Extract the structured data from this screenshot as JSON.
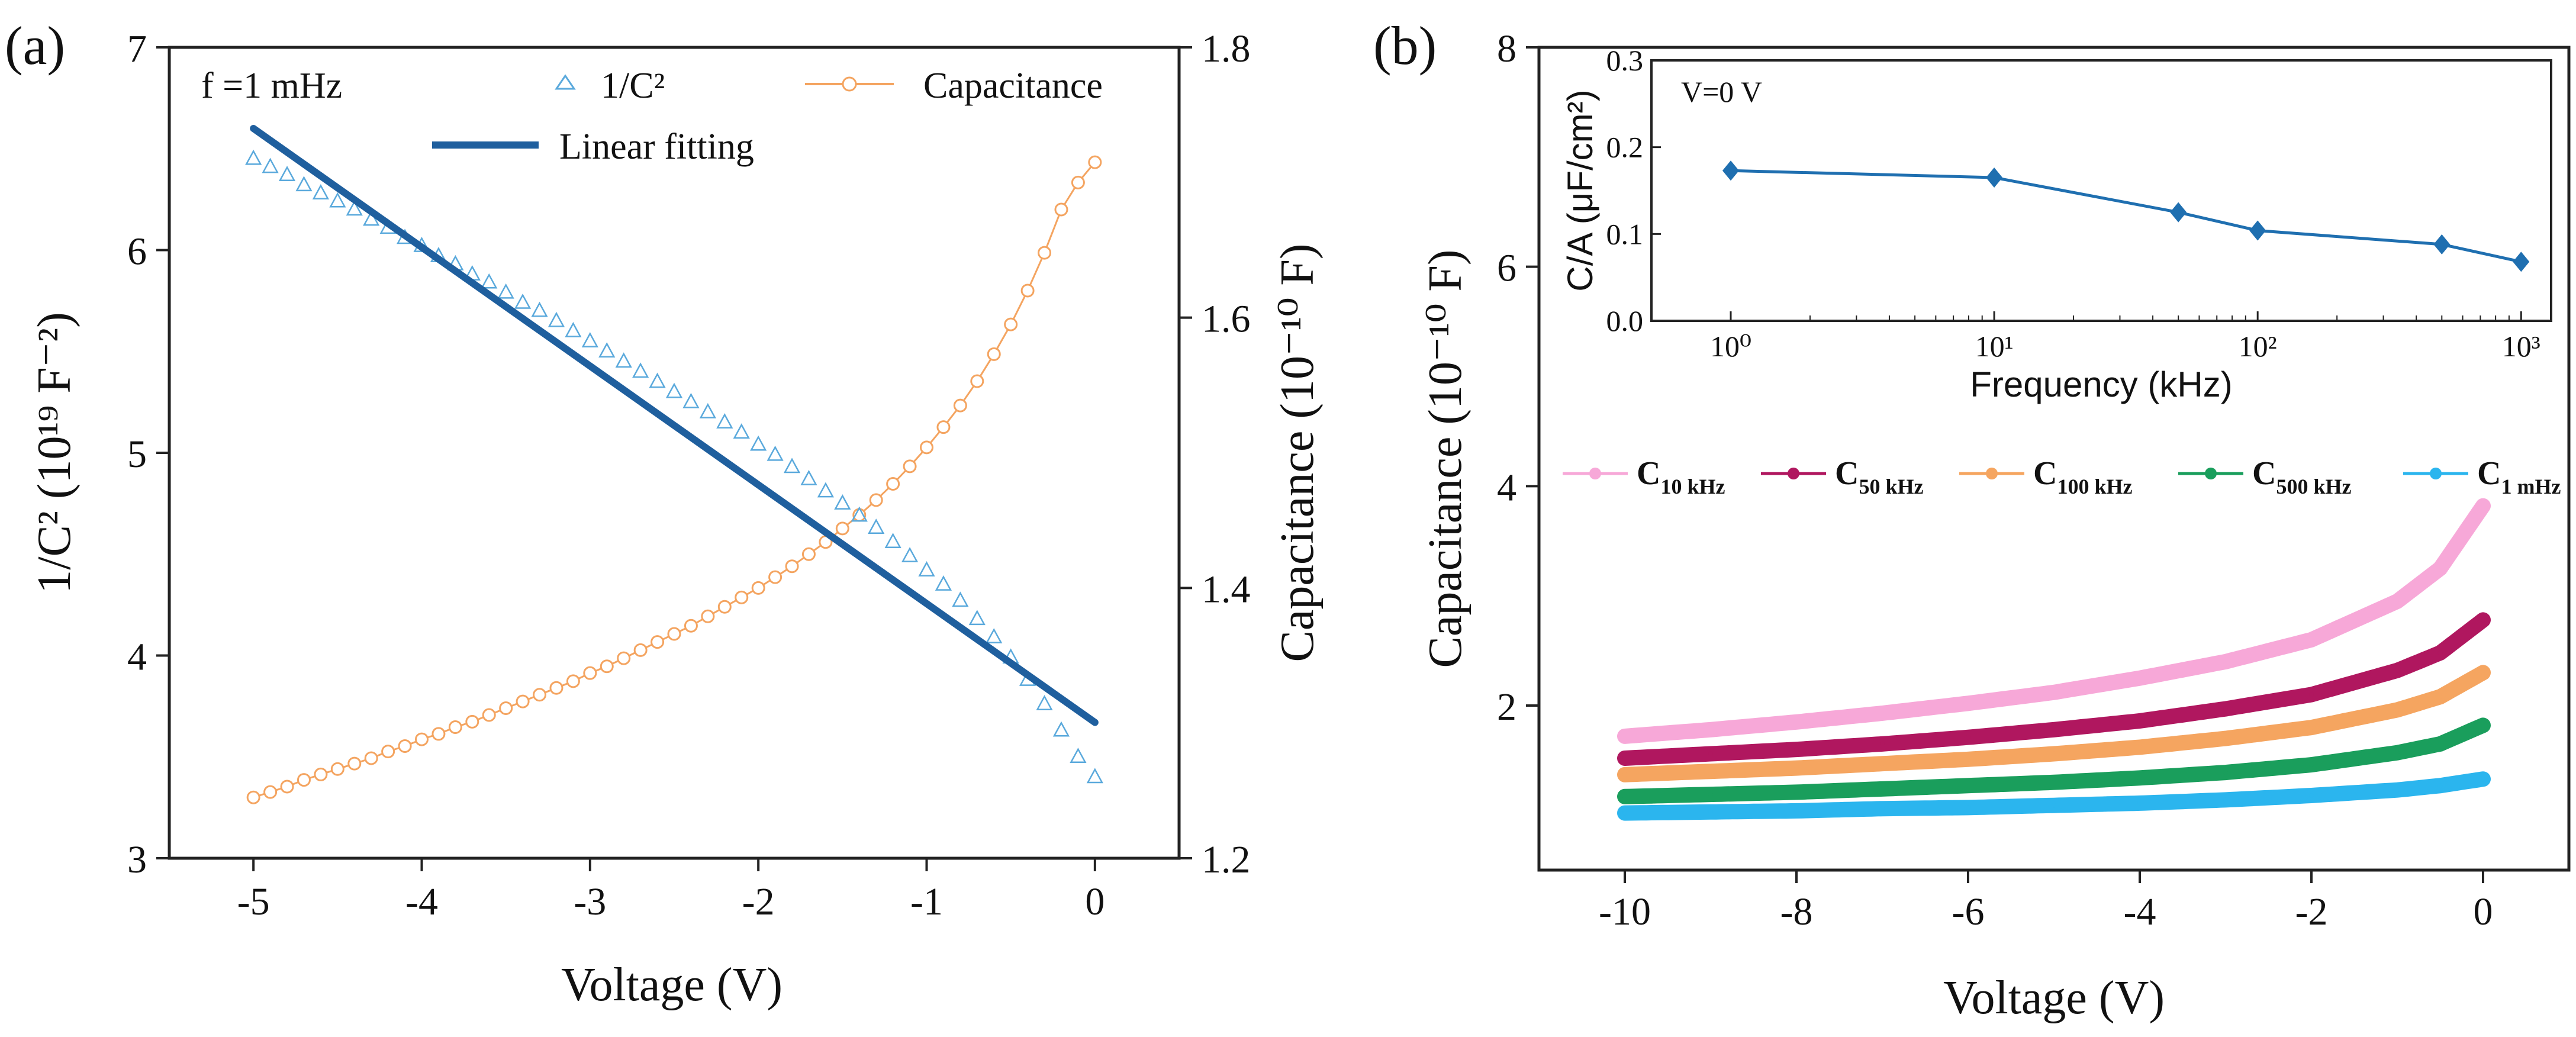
{
  "chart_data": [
    {
      "panel": "(a)",
      "type": "line",
      "annotation": "f =1 mHz",
      "xlabel": "Voltage (V)",
      "xlim": [
        -5.5,
        0.5
      ],
      "xticks": [
        "-5",
        "-4",
        "-3",
        "-2",
        "-1",
        "0"
      ],
      "ylabel_left": "1/C² (10¹⁹ F⁻²)",
      "ylim_left": [
        3,
        7
      ],
      "yticks_left": [
        "3",
        "4",
        "5",
        "6",
        "7"
      ],
      "ylabel_right": "Capacitance (10⁻¹⁰ F)",
      "ylim_right": [
        1.2,
        1.8
      ],
      "yticks_right": [
        "1.2",
        "1.4",
        "1.6",
        "1.8"
      ],
      "series": [
        {
          "name": "1/C²",
          "axis": "left",
          "marker": "open-triangle",
          "color": "#5aa9dc",
          "x": [
            -5.0,
            -4.9,
            -4.8,
            -4.7,
            -4.6,
            -4.5,
            -4.4,
            -4.3,
            -4.2,
            -4.1,
            -4.0,
            -3.9,
            -3.8,
            -3.7,
            -3.6,
            -3.5,
            -3.4,
            -3.3,
            -3.2,
            -3.1,
            -3.0,
            -2.9,
            -2.8,
            -2.7,
            -2.6,
            -2.5,
            -2.4,
            -2.3,
            -2.2,
            -2.1,
            -2.0,
            -1.9,
            -1.8,
            -1.7,
            -1.6,
            -1.5,
            -1.4,
            -1.3,
            -1.2,
            -1.1,
            -1.0,
            -0.9,
            -0.8,
            -0.7,
            -0.6,
            -0.5,
            -0.4,
            -0.3,
            -0.2,
            -0.1,
            0.0
          ],
          "values": [
            6.45,
            6.41,
            6.37,
            6.32,
            6.28,
            6.24,
            6.2,
            6.15,
            6.11,
            6.06,
            6.02,
            5.97,
            5.93,
            5.88,
            5.84,
            5.79,
            5.74,
            5.7,
            5.65,
            5.6,
            5.55,
            5.5,
            5.45,
            5.4,
            5.35,
            5.3,
            5.25,
            5.2,
            5.15,
            5.1,
            5.04,
            4.99,
            4.93,
            4.87,
            4.81,
            4.75,
            4.69,
            4.63,
            4.56,
            4.49,
            4.42,
            4.35,
            4.27,
            4.18,
            4.09,
            3.99,
            3.88,
            3.76,
            3.63,
            3.5,
            3.4
          ]
        },
        {
          "name": "Linear fitting",
          "axis": "left",
          "style": "line",
          "color": "#1f5f9e",
          "x": [
            -5.0,
            0.0
          ],
          "values": [
            6.6,
            3.67
          ]
        },
        {
          "name": "Capacitance",
          "axis": "right",
          "marker": "open-circle",
          "color": "#f4a460",
          "x": [
            -5.0,
            -4.9,
            -4.8,
            -4.7,
            -4.6,
            -4.5,
            -4.4,
            -4.3,
            -4.2,
            -4.1,
            -4.0,
            -3.9,
            -3.8,
            -3.7,
            -3.6,
            -3.5,
            -3.4,
            -3.3,
            -3.2,
            -3.1,
            -3.0,
            -2.9,
            -2.8,
            -2.7,
            -2.6,
            -2.5,
            -2.4,
            -2.3,
            -2.2,
            -2.1,
            -2.0,
            -1.9,
            -1.8,
            -1.7,
            -1.6,
            -1.5,
            -1.4,
            -1.3,
            -1.2,
            -1.1,
            -1.0,
            -0.9,
            -0.8,
            -0.7,
            -0.6,
            -0.5,
            -0.4,
            -0.3,
            -0.2,
            -0.1,
            0.0
          ],
          "values": [
            1.245,
            1.249,
            1.253,
            1.258,
            1.262,
            1.266,
            1.27,
            1.274,
            1.279,
            1.283,
            1.288,
            1.292,
            1.297,
            1.301,
            1.306,
            1.311,
            1.316,
            1.321,
            1.326,
            1.331,
            1.337,
            1.342,
            1.348,
            1.354,
            1.36,
            1.366,
            1.372,
            1.379,
            1.386,
            1.393,
            1.4,
            1.408,
            1.416,
            1.425,
            1.434,
            1.444,
            1.454,
            1.465,
            1.477,
            1.49,
            1.504,
            1.519,
            1.535,
            1.553,
            1.573,
            1.595,
            1.62,
            1.648,
            1.68,
            1.7,
            1.715
          ]
        }
      ]
    },
    {
      "panel": "(b)",
      "type": "line",
      "xlabel": "Voltage (V)",
      "xlim": [
        -11,
        1
      ],
      "xticks": [
        "-10",
        "-8",
        "-6",
        "-4",
        "-2",
        "0"
      ],
      "ylabel": "Capacitance (10⁻¹⁰ F)",
      "ylim": [
        0.5,
        8
      ],
      "yticks": [
        "2",
        "4",
        "6",
        "8"
      ],
      "x": [
        -10,
        -9,
        -8,
        -7,
        -6,
        -5,
        -4,
        -3,
        -2,
        -1,
        -0.5,
        0
      ],
      "series": [
        {
          "name": "C",
          "subscript": "10 kHz",
          "color": "#f7a8d8",
          "values": [
            1.72,
            1.78,
            1.85,
            1.93,
            2.02,
            2.12,
            2.25,
            2.4,
            2.6,
            2.95,
            3.25,
            3.82
          ]
        },
        {
          "name": "C",
          "subscript": "50 kHz",
          "color": "#b0175f",
          "values": [
            1.52,
            1.56,
            1.6,
            1.65,
            1.71,
            1.78,
            1.86,
            1.97,
            2.1,
            2.32,
            2.48,
            2.78
          ]
        },
        {
          "name": "C",
          "subscript": "100 kHz",
          "color": "#f5a560",
          "values": [
            1.37,
            1.4,
            1.43,
            1.47,
            1.51,
            1.56,
            1.62,
            1.7,
            1.8,
            1.96,
            2.08,
            2.3
          ]
        },
        {
          "name": "C",
          "subscript": "500 kHz",
          "color": "#1a9e5c",
          "values": [
            1.17,
            1.19,
            1.21,
            1.24,
            1.27,
            1.3,
            1.34,
            1.39,
            1.46,
            1.57,
            1.65,
            1.82
          ]
        },
        {
          "name": "C",
          "subscript": "1 mHz",
          "color": "#2bb5ee",
          "values": [
            1.02,
            1.03,
            1.04,
            1.06,
            1.07,
            1.09,
            1.11,
            1.14,
            1.18,
            1.23,
            1.27,
            1.33
          ]
        }
      ],
      "inset": {
        "type": "line",
        "annotation": "V=0 V",
        "xlabel": "Frequency (kHz)",
        "xscale": "log",
        "xlim": [
          0.5,
          1300
        ],
        "xticks": [
          "10⁰",
          "10¹",
          "10²",
          "10³"
        ],
        "ylabel": "C/A (μF/cm²)",
        "ylim": [
          0,
          0.3
        ],
        "yticks": [
          "0.0",
          "0.1",
          "0.2",
          "0.3"
        ],
        "color": "#1f6fb0",
        "x": [
          1,
          10,
          50,
          100,
          500,
          1000
        ],
        "values": [
          0.173,
          0.165,
          0.125,
          0.104,
          0.088,
          0.068
        ]
      }
    }
  ]
}
